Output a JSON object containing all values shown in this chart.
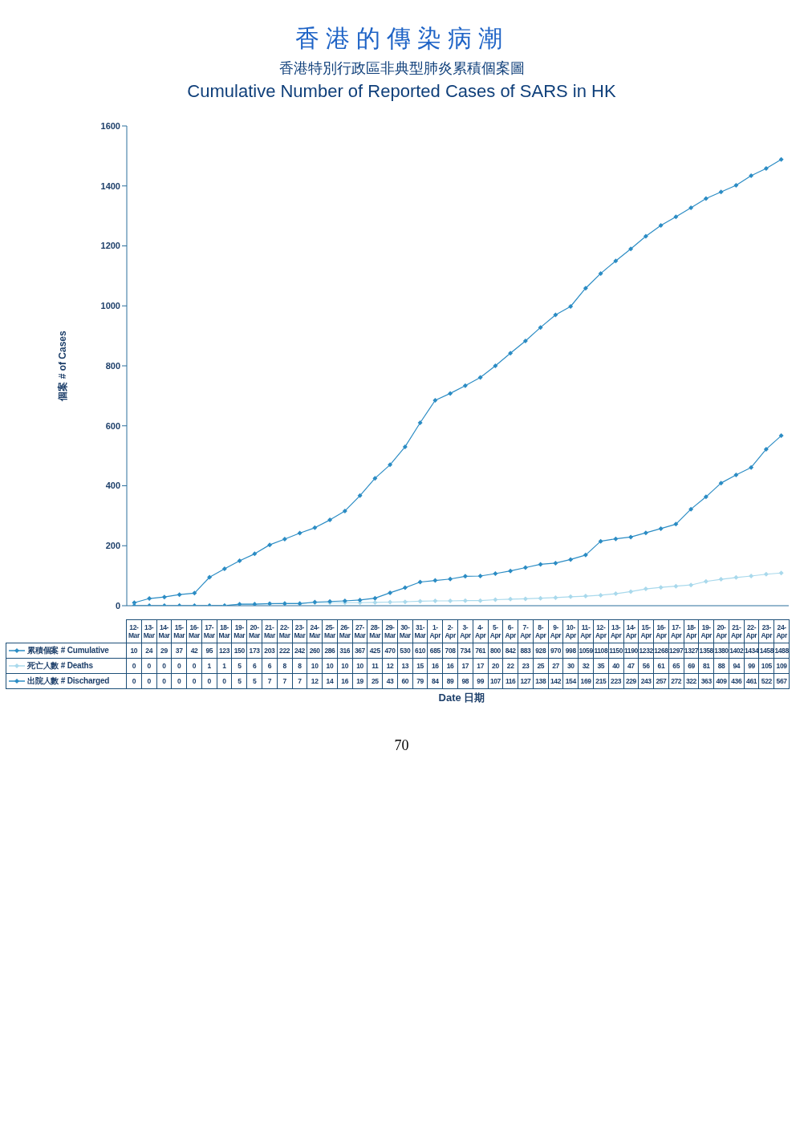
{
  "chart_data": {
    "type": "line",
    "title": "香港的傳染病潮",
    "subtitle": "香港特別行政區非典型肺炎累積個案圖\nCumulative Number of Reported Cases of SARS in HK",
    "xlabel": "Date 日期",
    "ylabel": "個案 # of Cases",
    "categories": [
      "12-Mar",
      "13-Mar",
      "14-Mar",
      "15-Mar",
      "16-Mar",
      "17-Mar",
      "18-Mar",
      "19-Mar",
      "20-Mar",
      "21-Mar",
      "22-Mar",
      "23-Mar",
      "24-Mar",
      "25-Mar",
      "26-Mar",
      "27-Mar",
      "28-Mar",
      "29-Mar",
      "30-Mar",
      "31-Mar",
      "1-Apr",
      "2-Apr",
      "3-Apr",
      "4-Apr",
      "5-Apr",
      "6-Apr",
      "7-Apr",
      "8-Apr",
      "9-Apr",
      "10-Apr",
      "11-Apr",
      "12-Apr",
      "13-Apr",
      "14-Apr",
      "15-Apr",
      "16-Apr",
      "17-Apr",
      "18-Apr",
      "19-Apr",
      "20-Apr",
      "21-Apr",
      "22-Apr",
      "23-Apr",
      "24-Apr"
    ],
    "series": [
      {
        "name": "累積個案 # Cumulative",
        "color": "#2b8cc4",
        "values": [
          10,
          24,
          29,
          37,
          42,
          95,
          123,
          150,
          173,
          203,
          222,
          242,
          260,
          286,
          316,
          367,
          425,
          470,
          530,
          610,
          685,
          708,
          734,
          761,
          800,
          842,
          883,
          928,
          970,
          998,
          1059,
          1108,
          1150,
          1190,
          1232,
          1268,
          1297,
          1327,
          1358,
          1380,
          1402,
          1434,
          1458,
          1488
        ]
      },
      {
        "name": "死亡人數 # Deaths",
        "color": "#a9d9ec",
        "values": [
          0,
          0,
          0,
          0,
          0,
          1,
          1,
          5,
          6,
          6,
          8,
          8,
          10,
          10,
          10,
          10,
          11,
          12,
          13,
          15,
          16,
          16,
          17,
          17,
          20,
          22,
          23,
          25,
          27,
          30,
          32,
          35,
          40,
          47,
          56,
          61,
          65,
          69,
          81,
          88,
          94,
          99,
          105,
          109
        ]
      },
      {
        "name": "出院人數 # Discharged",
        "color": "#2b8cc4",
        "values": [
          0,
          0,
          0,
          0,
          0,
          0,
          0,
          5,
          5,
          7,
          7,
          7,
          12,
          14,
          16,
          19,
          25,
          43,
          60,
          79,
          84,
          89,
          98,
          99,
          107,
          116,
          127,
          138,
          142,
          154,
          169,
          215,
          223,
          229,
          243,
          257,
          272,
          322,
          363,
          409,
          436,
          461,
          522,
          567
        ]
      }
    ],
    "ylim": [
      0,
      1600
    ],
    "yticks": [
      0,
      200,
      400,
      600,
      800,
      1000,
      1200,
      1400,
      1600
    ],
    "marker": "diamond",
    "legend": "bottom left",
    "data_labels": true,
    "annotations": [
      "70"
    ]
  }
}
